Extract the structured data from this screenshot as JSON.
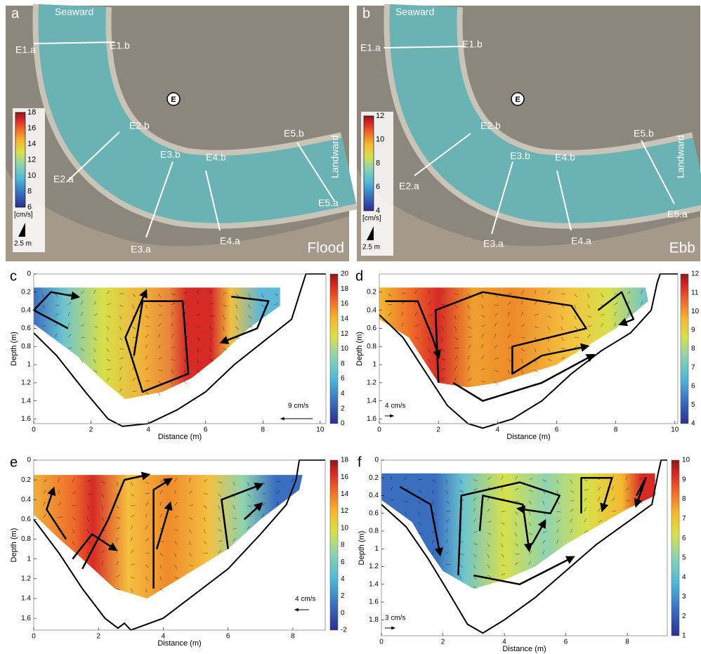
{
  "maps": [
    {
      "letter": "a",
      "labels": [
        "Seaward",
        "E1.a",
        "E1.b",
        "E",
        "E2.b",
        "E2.a",
        "E3.b",
        "E4.b",
        "E5.b",
        "E5.a",
        "E3.a",
        "E4.a",
        "Landward"
      ],
      "tide": "Flood",
      "colorbar": [
        "18",
        "16",
        "14",
        "12",
        "10",
        "8",
        "6"
      ],
      "unit": "[cm/s]",
      "scale": "2.5 m"
    },
    {
      "letter": "b",
      "labels": [
        "Seaward",
        "E1.a",
        "E1.b",
        "E",
        "E2.b",
        "E2.a",
        "E3.b",
        "E4.b",
        "E5.b",
        "E5.a",
        "E3.a",
        "E4.a",
        "Landward"
      ],
      "tide": "Ebb",
      "colorbar": [
        "12",
        "10",
        "8",
        "6",
        "4"
      ],
      "unit": "[cm/s]",
      "scale": "2.5 m"
    }
  ],
  "plots": [
    {
      "letter": "c",
      "ylabel": "Depth (m)",
      "xlabel": "Distance (m)",
      "xticks": [
        "0",
        "2",
        "4",
        "6",
        "8",
        "10"
      ],
      "yticks": [
        "0",
        "0.2",
        "0.4",
        "0.6",
        "0.8",
        "1",
        "1.2",
        "1.4",
        "1.6"
      ],
      "colorbar": [
        "20",
        "18",
        "16",
        "14",
        "12",
        "10",
        "8",
        "6",
        "4",
        "2",
        "0"
      ],
      "vector_scale": "9 cm/s"
    },
    {
      "letter": "d",
      "ylabel": "Depth (m)",
      "xlabel": "Distance (m)",
      "xticks": [
        "0",
        "2",
        "4",
        "6",
        "8",
        "10"
      ],
      "yticks": [
        "0.2",
        "0.4",
        "0.6",
        "0.8",
        "1",
        "1.2",
        "1.4",
        "1.6"
      ],
      "colorbar": [
        "12",
        "11",
        "10",
        "9",
        "8",
        "7",
        "6",
        "5",
        "4"
      ],
      "vector_scale": "4 cm/s"
    },
    {
      "letter": "e",
      "ylabel": "Depth (m)",
      "xlabel": "Distance (m)",
      "xticks": [
        "0",
        "2",
        "4",
        "6",
        "8"
      ],
      "yticks": [
        "0",
        "0.2",
        "0.4",
        "0.6",
        "0.8",
        "1",
        "1.2",
        "1.4",
        "1.6"
      ],
      "colorbar": [
        "18",
        "16",
        "14",
        "12",
        "10",
        "8",
        "6",
        "4",
        "2",
        "0",
        "-2"
      ],
      "vector_scale": "4 cm/s"
    },
    {
      "letter": "f",
      "ylabel": "Depth (m)",
      "xlabel": "Distance (m)",
      "xticks": [
        "0",
        "2",
        "4",
        "6",
        "8"
      ],
      "yticks": [
        "0",
        "0.2",
        "0.4",
        "0.6",
        "0.8",
        "1",
        "1.2",
        "1.4",
        "1.6",
        "1.8"
      ],
      "colorbar": [
        "10",
        "9",
        "8",
        "7",
        "6",
        "5",
        "4",
        "3",
        "2",
        "1"
      ],
      "vector_scale": "3 cm/s"
    }
  ]
}
